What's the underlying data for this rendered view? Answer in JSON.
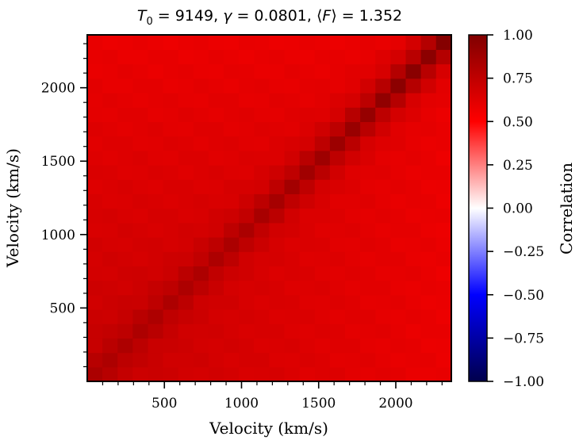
{
  "chart_data": {
    "type": "heatmap",
    "title_parts": {
      "t0_symbol": "T",
      "t0_subscript": "0",
      "t0_value": " = 9149, ",
      "gamma_symbol": "γ",
      "gamma_value": " = 0.0801, ",
      "flux_open": "⟨",
      "flux_symbol": "F",
      "flux_close": "⟩",
      "flux_value": " = 1.352"
    },
    "xlabel": "Velocity (km/s)",
    "ylabel": "Velocity (km/s)",
    "xlim": [
      0,
      2360
    ],
    "ylim": [
      0,
      2360
    ],
    "xticks": [
      500,
      1000,
      1500,
      2000
    ],
    "yticks": [
      500,
      1000,
      1500,
      2000
    ],
    "x_tick_labels": [
      "500",
      "1000",
      "1500",
      "2000"
    ],
    "y_tick_labels": [
      "500",
      "1000",
      "1500",
      "2000"
    ],
    "n_bins": 24,
    "bin_width_kms": 98.3,
    "matrix_description": "correlation matrix of flux between velocity bins; diagonal ~0.82-1.0, off-diagonal ~0.55-0.72",
    "diagonal_values": [
      0.83,
      0.82,
      0.82,
      0.82,
      0.82,
      0.82,
      0.82,
      0.82,
      0.82,
      0.83,
      0.83,
      0.84,
      0.85,
      0.86,
      0.87,
      0.88,
      0.89,
      0.9,
      0.91,
      0.93,
      0.95,
      0.96,
      0.95,
      0.98
    ],
    "offdiag_near_origin": 0.72,
    "offdiag_far": 0.58,
    "colorbar": {
      "label": "Correlation",
      "vmin": -1.0,
      "vmax": 1.0,
      "ticks": [
        1.0,
        0.75,
        0.5,
        0.25,
        0.0,
        -0.25,
        -0.5,
        -0.75,
        -1.0
      ],
      "tick_labels": [
        "1.00",
        "0.75",
        "0.50",
        "0.25",
        "0.00",
        "−0.25",
        "−0.50",
        "−0.75",
        "−1.00"
      ],
      "colormap": "seismic",
      "colormap_stops": [
        "#00004c",
        "#0000ff",
        "#ffffff",
        "#ff0000",
        "#800000"
      ]
    }
  }
}
